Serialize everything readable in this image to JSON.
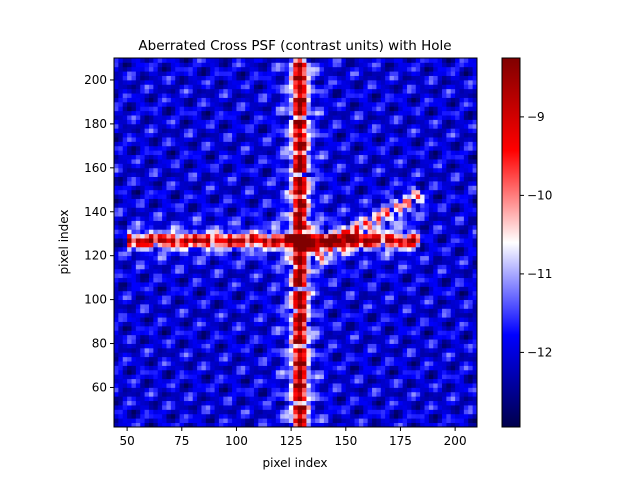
{
  "chart_data": {
    "type": "heatmap",
    "title": "Aberrated Cross PSF (contrast units) with Hole",
    "xlabel": "pixel index",
    "ylabel": "pixel index",
    "xlim": [
      44,
      210
    ],
    "ylim": [
      42,
      210
    ],
    "x_ticks": [
      50,
      75,
      100,
      125,
      150,
      175,
      200
    ],
    "y_ticks": [
      60,
      80,
      100,
      120,
      140,
      160,
      180,
      200
    ],
    "colorbar": {
      "cmap": "seismic",
      "range": [
        -12.95,
        -8.25
      ],
      "ticks": [
        -12,
        -11,
        -10,
        -9
      ]
    },
    "features": {
      "vertical_arm": {
        "x_center": 129,
        "y_from": 42,
        "y_to": 210,
        "peak": -8.5
      },
      "horizontal_arm": {
        "y_center": 127,
        "x_from": 50,
        "x_to": 185,
        "peak": -9.0
      },
      "diagonal_lobe": {
        "from": [
          135,
          120
        ],
        "to": [
          185,
          148
        ],
        "peak": -9.9
      },
      "background": -12.0
    }
  }
}
